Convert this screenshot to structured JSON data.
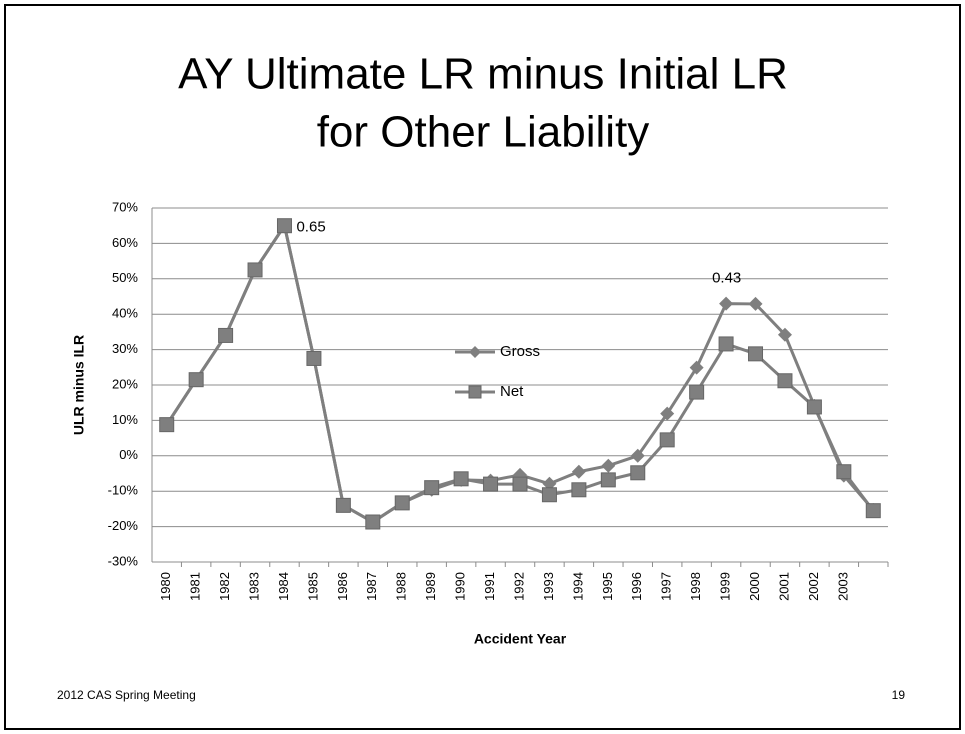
{
  "chart_data": {
    "type": "line",
    "title": [
      "AY Ultimate LR minus Initial LR",
      "for Other Liability"
    ],
    "x_label": "Accident Year",
    "y_label": "ULR minus ILR",
    "footer": "2012 CAS Spring Meeting",
    "page_number": "19",
    "categories": [
      "1980",
      "1981",
      "1982",
      "1983",
      "1984",
      "1985",
      "1986",
      "1987",
      "1988",
      "1989",
      "1990",
      "1991",
      "1992",
      "1993",
      "1994",
      "1995",
      "1996",
      "1997",
      "1998",
      "1999",
      "2000",
      "2001",
      "2002",
      "2003",
      null
    ],
    "ylim": [
      -30,
      70
    ],
    "yticks": [
      {
        "value": 70,
        "label": "70%"
      },
      {
        "value": 60,
        "label": "60%"
      },
      {
        "value": 50,
        "label": "50%"
      },
      {
        "value": 40,
        "label": "40%"
      },
      {
        "value": 30,
        "label": "30%"
      },
      {
        "value": 20,
        "label": "20%"
      },
      {
        "value": 10,
        "label": "10%"
      },
      {
        "value": 0,
        "label": "0%"
      },
      {
        "value": -10,
        "label": "-10%"
      },
      {
        "value": -20,
        "label": "-20%"
      },
      {
        "value": -30,
        "label": "-30%"
      }
    ],
    "grid": true,
    "series": [
      {
        "name": "Gross",
        "color": "#7f7f7f",
        "marker": "diamond",
        "values": [
          8.8,
          21.5,
          34,
          52.5,
          65,
          27.5,
          -14,
          -18.7,
          -13.3,
          -9.6,
          -6.8,
          -7,
          -5.4,
          -7.9,
          -4.5,
          -2.8,
          0,
          11.9,
          24.9,
          43,
          42.9,
          34.2,
          14.1,
          -5.6,
          -15.3
        ],
        "value_labels": [
          null,
          null,
          null,
          null,
          null,
          null,
          null,
          null,
          null,
          null,
          null,
          null,
          null,
          null,
          null,
          null,
          null,
          null,
          null,
          "0.43",
          null,
          null,
          null,
          null,
          null
        ]
      },
      {
        "name": "Net",
        "color": "#7f7f7f",
        "marker": "square",
        "values": [
          8.8,
          21.5,
          34,
          52.5,
          65,
          27.5,
          -14,
          -18.7,
          -13.3,
          -9,
          -6.5,
          -8,
          -8,
          -11,
          -9.6,
          -6.8,
          -4.8,
          4.5,
          18,
          31.6,
          28.8,
          21.2,
          13.8,
          -4.5,
          -15.5
        ],
        "value_labels": [
          null,
          null,
          null,
          null,
          "0.65",
          null,
          null,
          null,
          null,
          null,
          null,
          null,
          null,
          null,
          null,
          null,
          null,
          null,
          null,
          null,
          null,
          null,
          null,
          null,
          null
        ]
      }
    ]
  }
}
